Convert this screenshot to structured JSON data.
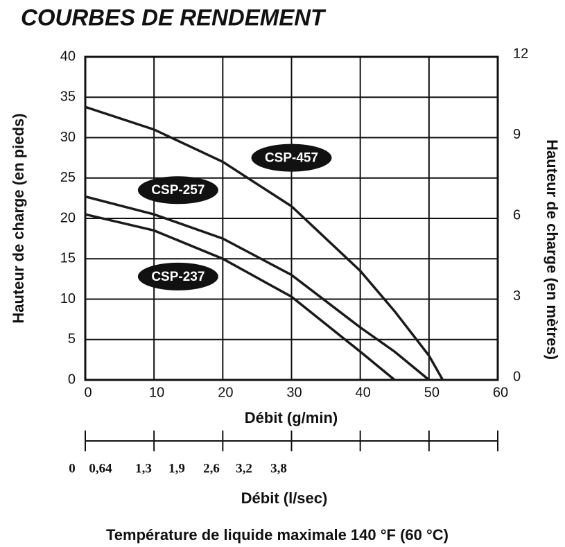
{
  "chart_data": {
    "type": "line",
    "title": "COURBES DE RENDEMENT",
    "x_label": "Débit (g/min)",
    "y_label": "Hauteur de charge (en pieds)",
    "y2_label": "Hauteur de charge (en mètres)",
    "x2_label": "Débit (l/sec)",
    "x2_tick_labels": [
      "0",
      "0,64",
      "1,3",
      "1,9",
      "2,6",
      "3,2",
      "3,8"
    ],
    "footnote": "Température de liquide maximale 140 °F (60 °C)",
    "xlim": [
      0,
      60
    ],
    "xticks": [
      0,
      10,
      20,
      30,
      40,
      50,
      60
    ],
    "ylim": [
      0,
      40
    ],
    "yticks": [
      0,
      5,
      10,
      15,
      20,
      25,
      30,
      35,
      40
    ],
    "y2lim": [
      0,
      12
    ],
    "y2ticks": [
      0,
      3,
      6,
      9,
      12
    ],
    "grid": true,
    "series": [
      {
        "name": "CSP-457",
        "color": "#1a1a1a",
        "x": [
          0,
          10,
          20,
          30,
          40,
          45,
          50,
          52
        ],
        "values": [
          33.8,
          31,
          27,
          21.5,
          13.5,
          8.5,
          3,
          0
        ]
      },
      {
        "name": "CSP-257",
        "color": "#1a1a1a",
        "x": [
          0,
          10,
          20,
          30,
          40,
          45,
          50
        ],
        "values": [
          22.7,
          20.5,
          17.5,
          13,
          6.5,
          3.5,
          0
        ]
      },
      {
        "name": "CSP-237",
        "color": "#1a1a1a",
        "x": [
          0,
          10,
          20,
          30,
          40,
          45
        ],
        "values": [
          20.5,
          18.5,
          15,
          10.3,
          3.5,
          0
        ]
      }
    ]
  }
}
